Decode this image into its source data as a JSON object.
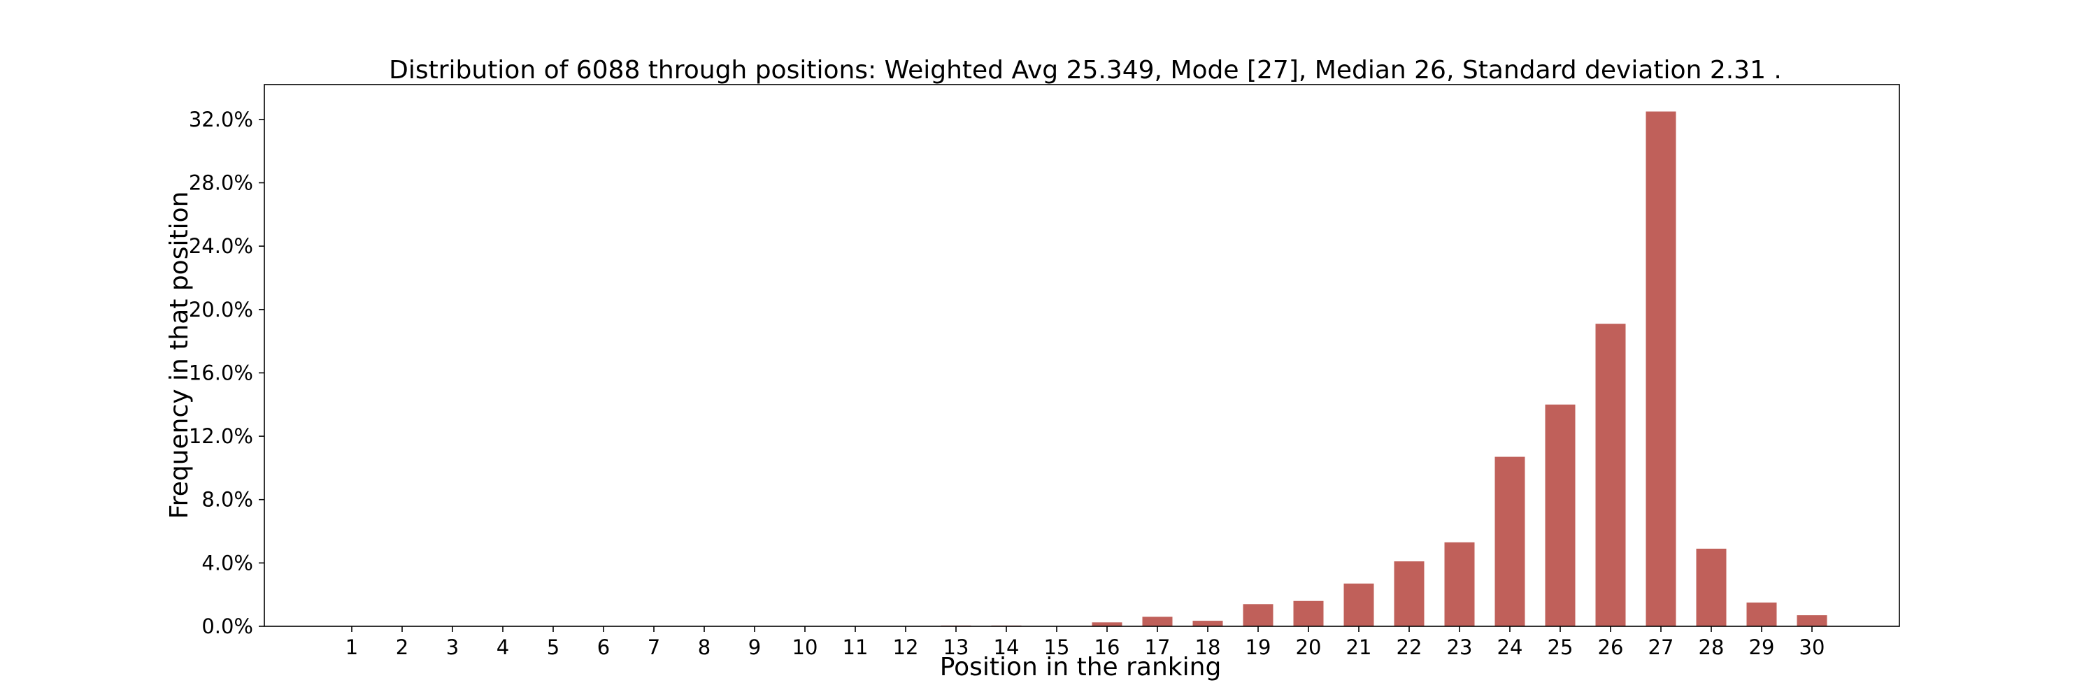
{
  "chart_data": {
    "type": "bar",
    "title": "Distribution of 6088 through positions: Weighted Avg 25.349, Mode [27], Median 26, Standard deviation 2.31 .",
    "xlabel": "Position in the ranking",
    "ylabel": "Frequency in that position",
    "categories": [
      "1",
      "2",
      "3",
      "4",
      "5",
      "6",
      "7",
      "8",
      "9",
      "10",
      "11",
      "12",
      "13",
      "14",
      "15",
      "16",
      "17",
      "18",
      "19",
      "20",
      "21",
      "22",
      "23",
      "24",
      "25",
      "26",
      "27",
      "28",
      "29",
      "30"
    ],
    "values": [
      0,
      0,
      0,
      0,
      0,
      0,
      0,
      0,
      0,
      0,
      0,
      0,
      0.05,
      0.05,
      0,
      0.25,
      0.6,
      0.35,
      1.4,
      1.6,
      2.7,
      4.1,
      5.3,
      10.7,
      14.0,
      19.1,
      32.5,
      4.9,
      1.5,
      0.7
    ],
    "ylim": [
      0,
      34.2
    ],
    "yticks": [
      0,
      4,
      8,
      12,
      16,
      20,
      24,
      28,
      32
    ],
    "ytick_labels": [
      "0.0%",
      "4.0%",
      "8.0%",
      "12.0%",
      "16.0%",
      "20.0%",
      "24.0%",
      "28.0%",
      "32.0%"
    ],
    "bar_color": "#c0605a",
    "grid": false,
    "legend": "none"
  }
}
